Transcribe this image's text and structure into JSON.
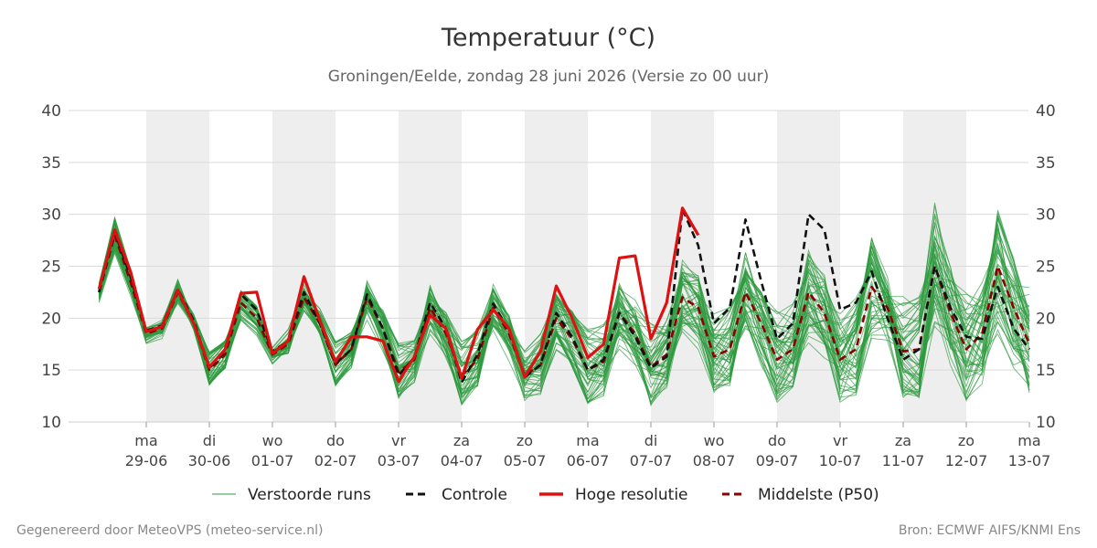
{
  "title": "Temperatuur (°C)",
  "subtitle": "Groningen/Eelde, zondag 28 juni 2026 (Versie zo 00 uur)",
  "credits": {
    "left": "Gegenereerd door MeteoVPS (meteo-service.nl)",
    "right": "Bron: ECMWF AIFS/KNMI Ens"
  },
  "legend": {
    "placement": "bottom-center",
    "items": [
      {
        "label": "Verstoorde runs",
        "color": "#2e9a3e",
        "style": "thin"
      },
      {
        "label": "Controle",
        "color": "#111111",
        "style": "dashed"
      },
      {
        "label": "Hoge resolutie",
        "color": "#dd1111",
        "style": "solid"
      },
      {
        "label": "Middelste (P50)",
        "color": "#8b0000",
        "style": "dashed"
      }
    ]
  },
  "chart_data": {
    "type": "line",
    "ylim": [
      10,
      40
    ],
    "yticks": [
      10,
      15,
      20,
      25,
      30,
      35,
      40
    ],
    "grid": true,
    "x_start": "2026-06-28T06:00",
    "x_step_hours": 6,
    "day_labels": [
      {
        "day": "ma",
        "date": "29-06"
      },
      {
        "day": "di",
        "date": "30-06"
      },
      {
        "day": "wo",
        "date": "01-07"
      },
      {
        "day": "do",
        "date": "02-07"
      },
      {
        "day": "vr",
        "date": "03-07"
      },
      {
        "day": "za",
        "date": "04-07"
      },
      {
        "day": "zo",
        "date": "05-07"
      },
      {
        "day": "ma",
        "date": "06-07"
      },
      {
        "day": "di",
        "date": "07-07"
      },
      {
        "day": "wo",
        "date": "08-07"
      },
      {
        "day": "do",
        "date": "09-07"
      },
      {
        "day": "vr",
        "date": "10-07"
      },
      {
        "day": "za",
        "date": "11-07"
      },
      {
        "day": "zo",
        "date": "12-07"
      },
      {
        "day": "ma",
        "date": "13-07"
      }
    ],
    "shaded_days": [
      0,
      2,
      4,
      6,
      8,
      10,
      12
    ],
    "series": [
      {
        "name": "Controle",
        "color": "#111111",
        "dash": true,
        "values": [
          22.5,
          28.3,
          24.0,
          18.8,
          19.3,
          22.8,
          19.8,
          15.2,
          16.8,
          22.3,
          20.8,
          16.8,
          17.8,
          22.5,
          19.5,
          15.6,
          17.0,
          22.3,
          19.0,
          14.5,
          16.2,
          21.5,
          19.0,
          13.8,
          16.5,
          21.4,
          18.8,
          14.3,
          15.5,
          20.5,
          18.2,
          15.0,
          16.0,
          20.5,
          18.2,
          15.2,
          16.3,
          30.5,
          27.0,
          19.5,
          21.0,
          29.5,
          23.5,
          18.0,
          19.5,
          30.0,
          28.5,
          20.8,
          21.5,
          24.5,
          20.0,
          16.0,
          17.0,
          25.0,
          21.0,
          18.2,
          18.0,
          23.0,
          19.0,
          17.0
        ]
      },
      {
        "name": "Hoge resolutie",
        "color": "#dd1111",
        "dash": false,
        "values": [
          22.8,
          28.5,
          24.5,
          18.7,
          19.2,
          22.7,
          19.5,
          15.3,
          17.0,
          22.4,
          22.5,
          16.6,
          17.8,
          24.0,
          19.8,
          15.8,
          18.2,
          18.2,
          17.8,
          13.9,
          16.3,
          20.3,
          19.0,
          14.2,
          18.9,
          20.8,
          19.0,
          14.3,
          16.8,
          23.1,
          20.0,
          16.2,
          17.5,
          25.8,
          26.0,
          18.0,
          21.5,
          30.6,
          28.0
        ]
      },
      {
        "name": "Middelste (P50)",
        "color": "#8b0000",
        "dash": true,
        "values": [
          22.5,
          28.0,
          23.5,
          18.5,
          19.0,
          22.5,
          19.5,
          15.0,
          16.5,
          21.5,
          20.0,
          16.5,
          17.5,
          22.0,
          19.5,
          15.5,
          17.0,
          22.0,
          19.0,
          14.8,
          16.0,
          21.0,
          18.5,
          14.5,
          16.0,
          21.0,
          18.5,
          14.5,
          15.5,
          20.0,
          18.0,
          15.0,
          15.8,
          20.5,
          18.5,
          15.3,
          16.5,
          22.0,
          21.0,
          16.3,
          17.0,
          22.5,
          19.5,
          16.0,
          17.0,
          22.5,
          20.5,
          16.0,
          17.0,
          23.0,
          21.0,
          16.8,
          17.0,
          25.0,
          20.5,
          17.0,
          18.5,
          25.0,
          21.0,
          17.5
        ]
      }
    ]
  }
}
